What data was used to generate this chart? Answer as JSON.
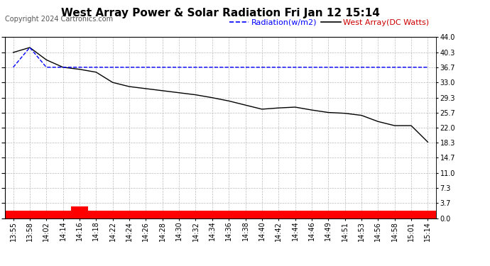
{
  "title": "West Array Power & Solar Radiation Fri Jan 12 15:14",
  "copyright": "Copyright 2024 Cartronics.com",
  "legend_radiation": "Radiation(w/m2)",
  "legend_west": "West Array(DC Watts)",
  "yticks": [
    0.0,
    3.7,
    7.3,
    11.0,
    14.7,
    18.3,
    22.0,
    25.7,
    29.3,
    33.0,
    36.7,
    40.3,
    44.0
  ],
  "xtick_labels": [
    "13:55",
    "13:58",
    "14:02",
    "14:14",
    "14:16",
    "14:18",
    "14:22",
    "14:24",
    "14:26",
    "14:28",
    "14:30",
    "14:32",
    "14:34",
    "14:36",
    "14:38",
    "14:40",
    "14:42",
    "14:44",
    "14:46",
    "14:49",
    "14:51",
    "14:53",
    "14:56",
    "14:58",
    "15:01",
    "15:14"
  ],
  "ymin": 0.0,
  "ymax": 44.0,
  "background_color": "#ffffff",
  "plot_bg_color": "#ffffff",
  "grid_color": "#bbbbbb",
  "title_color": "#000000",
  "radiation_color": "#0000ff",
  "west_array_color": "#000000",
  "red_bar_color": "#ff0000",
  "radiation_data_x": [
    0,
    1,
    2,
    3,
    4,
    5,
    6,
    7,
    8,
    9,
    10,
    11,
    12,
    13,
    14,
    15,
    16,
    17,
    18,
    19,
    20,
    21,
    22,
    23,
    24,
    25
  ],
  "radiation_data_y": [
    36.7,
    41.5,
    36.7,
    36.7,
    36.7,
    36.7,
    36.7,
    36.7,
    36.7,
    36.7,
    36.7,
    36.7,
    36.7,
    36.7,
    36.7,
    36.7,
    36.7,
    36.7,
    36.7,
    36.7,
    36.7,
    36.7,
    36.7,
    36.7,
    36.7,
    36.7
  ],
  "west_data_x": [
    0,
    1,
    2,
    3,
    4,
    5,
    6,
    7,
    8,
    9,
    10,
    11,
    12,
    13,
    14,
    15,
    16,
    17,
    18,
    19,
    20,
    21,
    22,
    23,
    24,
    25
  ],
  "west_data_y": [
    40.3,
    41.5,
    38.5,
    36.7,
    36.2,
    35.5,
    33.0,
    32.0,
    31.5,
    31.0,
    30.5,
    30.0,
    29.3,
    28.5,
    27.5,
    26.5,
    26.8,
    27.0,
    26.3,
    25.7,
    25.5,
    25.0,
    23.5,
    22.5,
    22.5,
    18.5
  ],
  "red_bar_heights": [
    1.8,
    1.8,
    1.8,
    1.8,
    2.8,
    1.8,
    1.8,
    1.8,
    1.8,
    1.8,
    1.8,
    1.8,
    1.8,
    1.8,
    1.8,
    1.8,
    1.8,
    1.8,
    1.8,
    1.8,
    1.8,
    1.8,
    1.8,
    1.8,
    1.8,
    1.8
  ],
  "font_size_title": 11,
  "font_size_tick": 7,
  "font_size_legend": 8,
  "font_size_copyright": 7,
  "legend_radiation_color": "#0000ff",
  "legend_west_color": "#cc0000"
}
